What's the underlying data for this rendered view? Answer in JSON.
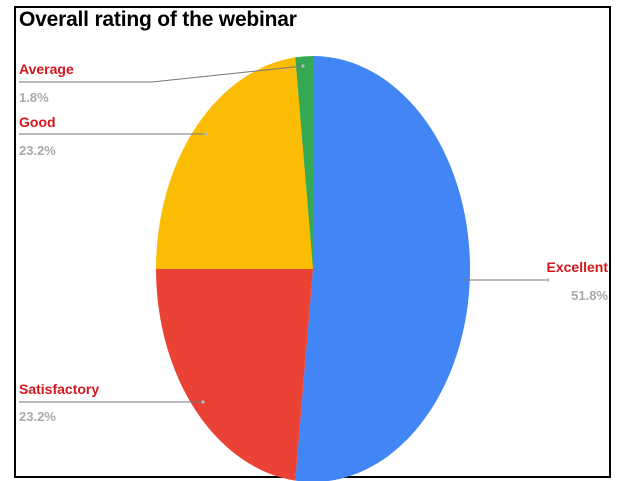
{
  "chart_data": {
    "type": "pie",
    "title": "Overall rating of the webinar",
    "slices": [
      {
        "label": "Excellent",
        "value": 51.8,
        "value_label": "51.8%",
        "color": "#4285f4"
      },
      {
        "label": "Satisfactory",
        "value": 23.2,
        "value_label": "23.2%",
        "color": "#ea4335"
      },
      {
        "label": "Good",
        "value": 23.2,
        "value_label": "23.2%",
        "color": "#fbbc04"
      },
      {
        "label": "Average",
        "value": 1.8,
        "value_label": "1.8%",
        "color": "#34a853"
      }
    ],
    "label_color": "#d5171c",
    "value_label_color": "#a9a9a9",
    "start": "top, clockwise"
  }
}
